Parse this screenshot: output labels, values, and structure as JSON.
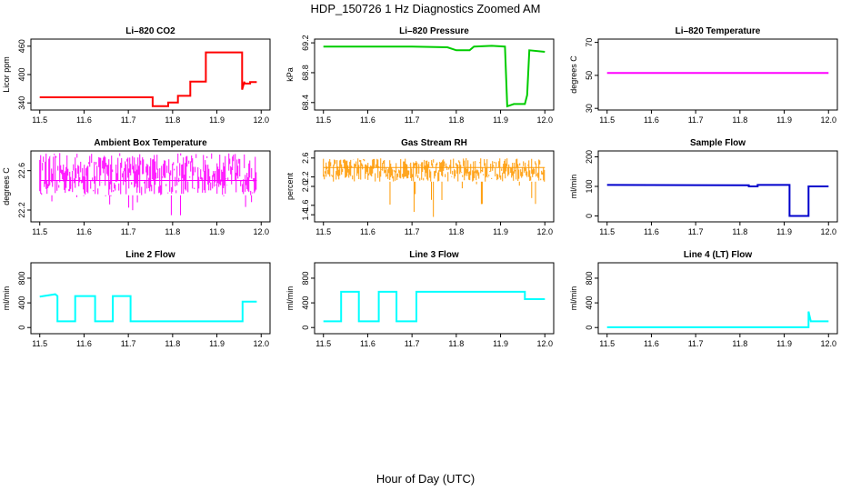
{
  "figure": {
    "title": "HDP_150726  1 Hz Diagnostics Zoomed AM",
    "xlabel": "Hour of Day (UTC)"
  },
  "chart_data": [
    {
      "id": "co2",
      "type": "line",
      "title": "Li–820 CO2",
      "ylabel": "Licor ppm",
      "color": "#ff0000",
      "xlim": [
        11.48,
        12.02
      ],
      "ylim": [
        325,
        475
      ],
      "xticks": [
        "11.5",
        "11.6",
        "11.7",
        "11.8",
        "11.9",
        "12.0"
      ],
      "yticks": [
        "340",
        "400",
        "460"
      ],
      "x": [
        11.5,
        11.755,
        11.755,
        11.79,
        11.79,
        11.812,
        11.812,
        11.84,
        11.84,
        11.875,
        11.875,
        11.957,
        11.957,
        11.962,
        11.962,
        11.975,
        11.975,
        11.99
      ],
      "y": [
        352,
        352,
        333,
        333,
        341,
        341,
        355,
        355,
        385,
        385,
        447,
        447,
        368,
        385,
        381,
        381,
        384,
        384
      ]
    },
    {
      "id": "pressure",
      "type": "line",
      "title": "Li–820 Pressure",
      "ylabel": "kPa",
      "color": "#00cc00",
      "xlim": [
        11.48,
        12.02
      ],
      "ylim": [
        68.3,
        69.25
      ],
      "xticks": [
        "11.5",
        "11.6",
        "11.7",
        "11.8",
        "11.9",
        "12.0"
      ],
      "yticks": [
        "68.4",
        "68.8",
        "69.2"
      ],
      "x": [
        11.5,
        11.6,
        11.7,
        11.78,
        11.8,
        11.83,
        11.84,
        11.88,
        11.91,
        11.915,
        11.93,
        11.955,
        11.96,
        11.965,
        12.0
      ],
      "y": [
        69.15,
        69.15,
        69.15,
        69.14,
        69.1,
        69.1,
        69.15,
        69.16,
        69.15,
        68.35,
        68.38,
        68.38,
        68.5,
        69.1,
        69.08
      ]
    },
    {
      "id": "licor_temp",
      "type": "line",
      "title": "Li–820 Temperature",
      "ylabel": "degrees C",
      "color": "#ff00ff",
      "xlim": [
        11.48,
        12.02
      ],
      "ylim": [
        29,
        72
      ],
      "xticks": [
        "11.5",
        "11.6",
        "11.7",
        "11.8",
        "11.9",
        "12.0"
      ],
      "yticks": [
        "30",
        "50",
        "70"
      ],
      "x": [
        11.5,
        12.0
      ],
      "y": [
        51.5,
        51.5
      ]
    },
    {
      "id": "box_temp",
      "type": "line",
      "title": "Ambient Box Temperature",
      "ylabel": "degrees C",
      "color": "#ff00ff",
      "xlim": [
        11.48,
        12.02
      ],
      "ylim": [
        22.08,
        22.8
      ],
      "xticks": [
        "11.5",
        "11.6",
        "11.7",
        "11.8",
        "11.9",
        "12.0"
      ],
      "yticks": [
        "22.2",
        "22.6"
      ],
      "x": [
        11.5,
        11.6,
        11.7,
        11.8,
        11.9,
        11.99
      ],
      "y": [
        22.5,
        22.5,
        22.5,
        22.5,
        22.5,
        22.5
      ],
      "band": [
        22.35,
        22.78
      ]
    },
    {
      "id": "rh",
      "type": "line",
      "title": "Gas Stream RH",
      "ylabel": "percent",
      "color": "#ff9900",
      "xlim": [
        11.48,
        12.02
      ],
      "ylim": [
        1.25,
        2.75
      ],
      "xticks": [
        "11.5",
        "11.6",
        "11.7",
        "11.8",
        "11.9",
        "12.0"
      ],
      "yticks": [
        "1.4",
        "1.6",
        "2.0",
        "2.2",
        "2.6"
      ],
      "x": [
        11.5,
        11.6,
        11.7,
        11.8,
        11.9,
        12.0
      ],
      "y": [
        2.4,
        2.4,
        2.4,
        2.4,
        2.4,
        2.4
      ],
      "band": [
        2.1,
        2.6
      ]
    },
    {
      "id": "sample_flow",
      "type": "line",
      "title": "Sample Flow",
      "ylabel": "ml/min",
      "color": "#0000cc",
      "xlim": [
        11.48,
        12.02
      ],
      "ylim": [
        -20,
        220
      ],
      "xticks": [
        "11.5",
        "11.6",
        "11.7",
        "11.8",
        "11.9",
        "12.0"
      ],
      "yticks": [
        "0",
        "100",
        "200"
      ],
      "x": [
        11.5,
        11.82,
        11.82,
        11.84,
        11.84,
        11.912,
        11.912,
        11.955,
        11.955,
        12.0
      ],
      "y": [
        105,
        104,
        100,
        100,
        105,
        105,
        0,
        0,
        100,
        100
      ]
    },
    {
      "id": "line2",
      "type": "line",
      "title": "Line 2 Flow",
      "ylabel": "ml/min",
      "color": "#00ffff",
      "xlim": [
        11.48,
        12.02
      ],
      "ylim": [
        -100,
        1050
      ],
      "xticks": [
        "11.5",
        "11.6",
        "11.7",
        "11.8",
        "11.9",
        "12.0"
      ],
      "yticks": [
        "0",
        "400",
        "800"
      ],
      "x": [
        11.5,
        11.535,
        11.54,
        11.54,
        11.58,
        11.58,
        11.625,
        11.625,
        11.665,
        11.665,
        11.705,
        11.705,
        11.958,
        11.958,
        11.99
      ],
      "y": [
        500,
        540,
        510,
        100,
        100,
        510,
        510,
        100,
        100,
        510,
        510,
        100,
        100,
        420,
        420
      ]
    },
    {
      "id": "line3",
      "type": "line",
      "title": "Line 3 Flow",
      "ylabel": "ml/min",
      "color": "#00ffff",
      "xlim": [
        11.48,
        12.02
      ],
      "ylim": [
        -100,
        1050
      ],
      "xticks": [
        "11.5",
        "11.6",
        "11.7",
        "11.8",
        "11.9",
        "12.0"
      ],
      "yticks": [
        "0",
        "400",
        "800"
      ],
      "x": [
        11.5,
        11.54,
        11.54,
        11.58,
        11.58,
        11.625,
        11.625,
        11.665,
        11.665,
        11.71,
        11.71,
        11.955,
        11.955,
        12.0
      ],
      "y": [
        100,
        100,
        580,
        580,
        100,
        100,
        580,
        580,
        100,
        100,
        580,
        580,
        460,
        460
      ]
    },
    {
      "id": "line4",
      "type": "line",
      "title": "Line 4 (LT) Flow",
      "ylabel": "ml/min",
      "color": "#00ffff",
      "xlim": [
        11.48,
        12.02
      ],
      "ylim": [
        -100,
        1050
      ],
      "xticks": [
        "11.5",
        "11.6",
        "11.7",
        "11.8",
        "11.9",
        "12.0"
      ],
      "yticks": [
        "0",
        "400",
        "800"
      ],
      "x": [
        11.5,
        11.955,
        11.955,
        11.96,
        11.96,
        12.0
      ],
      "y": [
        5,
        5,
        260,
        100,
        100,
        100
      ]
    }
  ]
}
